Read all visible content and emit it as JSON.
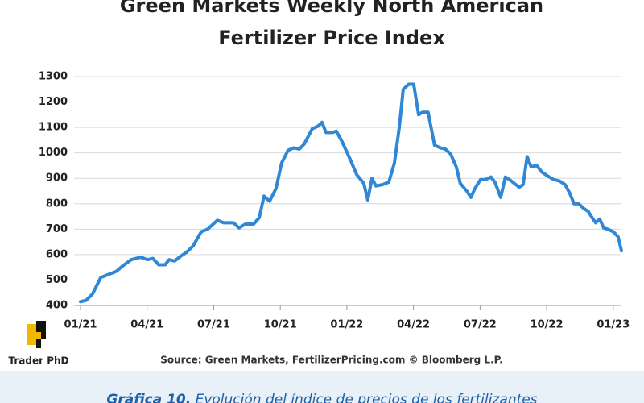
{
  "chart_data": {
    "type": "line",
    "title": [
      "Green Markets Weekly North American",
      "Fertilizer Price Index"
    ],
    "source": "Source: Green Markets, FertilizerPricing.com © Bloomberg L.P.",
    "x": [
      0,
      0.25,
      0.54,
      0.91,
      1.34,
      1.63,
      1.89,
      2.28,
      2.72,
      3.01,
      3.26,
      3.52,
      3.81,
      3.99,
      4.24,
      4.53,
      4.79,
      5.08,
      5.44,
      5.73,
      5.98,
      6.16,
      6.45,
      6.89,
      7.14,
      7.43,
      7.8,
      8.05,
      8.27,
      8.52,
      8.81,
      9.06,
      9.35,
      9.61,
      9.86,
      10.08,
      10.44,
      10.7,
      10.88,
      11.06,
      11.35,
      11.53,
      11.78,
      12.15,
      12.44,
      12.76,
      12.94,
      13.13,
      13.31,
      13.6,
      13.89,
      14.14,
      14.36,
      14.54,
      14.79,
      15.01,
      15.23,
      15.41,
      15.66,
      15.95,
      16.21,
      16.43,
      16.68,
      16.93,
      17.11,
      17.4,
      17.59,
      17.77,
      18.02,
      18.24,
      18.49,
      18.67,
      18.93,
      19.14,
      19.4,
      19.76,
      19.94,
      20.12,
      20.3,
      20.55,
      20.78,
      21.03,
      21.32,
      21.57,
      21.83,
      22.05,
      22.23,
      22.44,
      22.69,
      22.87,
      23.05,
      23.21,
      23.39,
      23.57,
      23.75,
      24.0,
      24.22,
      24.37
    ],
    "series": [
      {
        "name": "Fertilizer Price Index",
        "color": "#2f87d6",
        "values": [
          415,
          420,
          445,
          510,
          525,
          535,
          555,
          580,
          590,
          580,
          585,
          560,
          560,
          580,
          575,
          595,
          610,
          635,
          690,
          700,
          720,
          735,
          725,
          725,
          705,
          720,
          720,
          745,
          830,
          810,
          860,
          960,
          1010,
          1020,
          1015,
          1035,
          1095,
          1105,
          1120,
          1080,
          1080,
          1085,
          1045,
          975,
          915,
          880,
          815,
          900,
          870,
          875,
          885,
          960,
          1100,
          1250,
          1270,
          1270,
          1150,
          1160,
          1160,
          1030,
          1020,
          1015,
          995,
          945,
          880,
          850,
          825,
          860,
          895,
          895,
          905,
          885,
          825,
          905,
          890,
          865,
          875,
          985,
          945,
          950,
          925,
          910,
          895,
          890,
          875,
          840,
          800,
          800,
          780,
          770,
          745,
          725,
          740,
          705,
          700,
          690,
          670,
          615
        ]
      }
    ],
    "xlim": [
      0,
      24.37
    ],
    "xticks": [
      {
        "value": 0,
        "label": "01/21"
      },
      {
        "value": 3,
        "label": "04/21"
      },
      {
        "value": 6,
        "label": "07/21"
      },
      {
        "value": 9,
        "label": "10/21"
      },
      {
        "value": 12,
        "label": "01/22"
      },
      {
        "value": 15,
        "label": "04/22"
      },
      {
        "value": 18,
        "label": "07/22"
      },
      {
        "value": 21,
        "label": "10/22"
      },
      {
        "value": 24,
        "label": "01/23"
      }
    ],
    "ylim": [
      400,
      1300
    ],
    "yticks": [
      400,
      500,
      600,
      700,
      800,
      900,
      1000,
      1100,
      1200,
      1300
    ],
    "grid": true
  },
  "logo": "Trader PhD",
  "caption": {
    "label": "Gráfica 10.",
    "text": "Evolución del índice de precios de los fertilizantes"
  }
}
